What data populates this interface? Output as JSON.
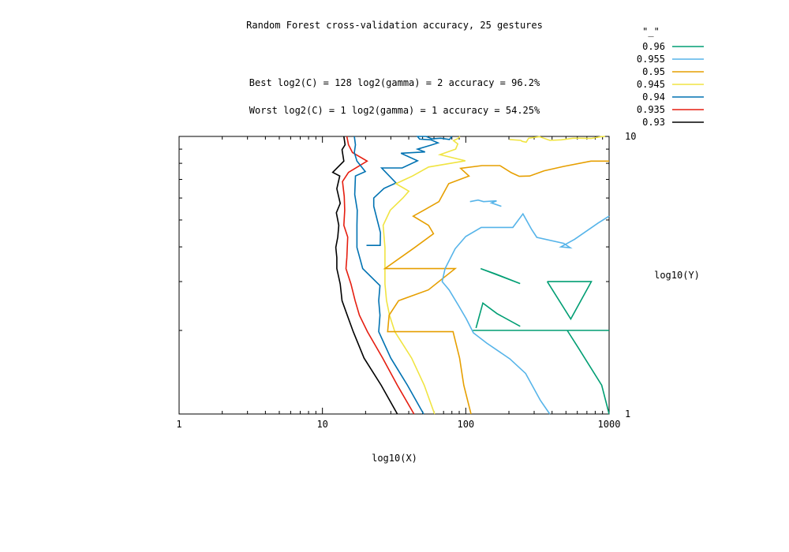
{
  "chart_data": {
    "type": "contour",
    "title": "Random Forest cross-validation accuracy, 25 gestures",
    "annotations": [
      "Best log2(C) = 128  log2(gamma) = 2  accuracy = 96.2%",
      "Worst log2(C) = 1  log2(gamma) = 1   accuracy = 54.25%"
    ],
    "xlabel": "log10(X)",
    "ylabel": "log10(Y)",
    "xscale": "log",
    "yscale": "log",
    "xlim": [
      1,
      1000
    ],
    "ylim": [
      1,
      10
    ],
    "x_ticks": [
      "1",
      "10",
      "100",
      "1000"
    ],
    "y_ticks": [
      "1",
      "10"
    ],
    "legend_title": "\"_\"",
    "legend_position": "top-right",
    "levels": [
      {
        "label": "0.96",
        "color": "#009e73"
      },
      {
        "label": "0.955",
        "color": "#56b4e9"
      },
      {
        "label": "0.95",
        "color": "#e69f00"
      },
      {
        "label": "0.945",
        "color": "#f0e442"
      },
      {
        "label": "0.94",
        "color": "#0072b2"
      },
      {
        "label": "0.935",
        "color": "#e51e10"
      },
      {
        "label": "0.93",
        "color": "#000000"
      }
    ],
    "series": [
      {
        "name": "0.93",
        "segments": [
          [
            [
              33.3,
              1
            ],
            [
              25.7,
              1.27
            ],
            [
              19.5,
              1.59
            ],
            [
              16.4,
              1.98
            ],
            [
              14.9,
              2.27
            ],
            [
              13.7,
              2.56
            ],
            [
              13.3,
              2.94
            ],
            [
              12.6,
              3.34
            ],
            [
              12.6,
              3.66
            ],
            [
              12.4,
              3.98
            ],
            [
              12.8,
              4.34
            ],
            [
              13.0,
              4.78
            ],
            [
              12.5,
              5.31
            ],
            [
              13.3,
              5.74
            ],
            [
              12.6,
              6.48
            ],
            [
              13.2,
              7.2
            ],
            [
              11.8,
              7.42
            ],
            [
              14.1,
              8.15
            ],
            [
              13.7,
              8.96
            ],
            [
              14.4,
              9.33
            ],
            [
              14.1,
              10
            ]
          ]
        ]
      },
      {
        "name": "0.935",
        "segments": [
          [
            [
              43.5,
              1
            ],
            [
              33.3,
              1.27
            ],
            [
              26.3,
              1.59
            ],
            [
              20.6,
              1.98
            ],
            [
              18.1,
              2.27
            ],
            [
              16.9,
              2.56
            ],
            [
              15.8,
              2.94
            ],
            [
              14.6,
              3.34
            ],
            [
              14.8,
              3.66
            ],
            [
              15.0,
              4.34
            ],
            [
              14.1,
              4.78
            ],
            [
              14.3,
              5.42
            ],
            [
              14.2,
              6.08
            ],
            [
              13.8,
              6.88
            ],
            [
              15.2,
              7.42
            ],
            [
              20.5,
              8.15
            ],
            [
              16.2,
              8.75
            ],
            [
              15.2,
              9.33
            ],
            [
              14.8,
              10
            ]
          ]
        ]
      },
      {
        "name": "0.94",
        "segments": [
          [
            [
              50.8,
              1
            ],
            [
              39.2,
              1.27
            ],
            [
              30.0,
              1.59
            ],
            [
              24.7,
              1.98
            ],
            [
              25.2,
              2.27
            ],
            [
              24.7,
              2.56
            ],
            [
              25.2,
              2.9
            ],
            [
              19.1,
              3.34
            ],
            [
              17.4,
              3.98
            ],
            [
              17.4,
              4.78
            ],
            [
              17.5,
              5.42
            ],
            [
              16.8,
              6.18
            ],
            [
              17.0,
              7.2
            ],
            [
              19.9,
              7.47
            ],
            [
              17.4,
              8.15
            ],
            [
              16.7,
              8.75
            ],
            [
              17.0,
              9.33
            ],
            [
              16.7,
              10
            ]
          ],
          [
            [
              20.3,
              4.05
            ],
            [
              25.3,
              4.05
            ],
            [
              25.4,
              4.5
            ],
            [
              22.8,
              5.6
            ],
            [
              22.8,
              6.0
            ],
            [
              26.9,
              6.5
            ],
            [
              32.6,
              6.8
            ],
            [
              25.9,
              7.7
            ],
            [
              36.0,
              7.7
            ],
            [
              46.1,
              8.17
            ],
            [
              35.3,
              8.7
            ],
            [
              52.0,
              8.79
            ],
            [
              46.1,
              9.0
            ],
            [
              57.0,
              9.3
            ],
            [
              64.0,
              9.48
            ],
            [
              57.0,
              9.72
            ],
            [
              47.6,
              9.78
            ],
            [
              46.1,
              10
            ],
            [
              53.0,
              10
            ],
            [
              58.0,
              9.8
            ],
            [
              67.0,
              9.85
            ],
            [
              77.0,
              9.75
            ],
            [
              80.0,
              10
            ]
          ]
        ]
      },
      {
        "name": "0.945",
        "segments": [
          [
            [
              60.6,
              1
            ],
            [
              51.3,
              1.27
            ],
            [
              41.9,
              1.59
            ],
            [
              32.0,
              1.98
            ],
            [
              29.4,
              2.27
            ],
            [
              28.0,
              2.56
            ],
            [
              27.3,
              2.94
            ],
            [
              27.3,
              3.34
            ],
            [
              27.3,
              3.98
            ],
            [
              26.5,
              4.78
            ],
            [
              29.7,
              5.42
            ],
            [
              36.4,
              6.0
            ],
            [
              40.1,
              6.35
            ],
            [
              32.6,
              6.76
            ],
            [
              42.5,
              7.2
            ],
            [
              55.0,
              7.76
            ],
            [
              99.3,
              8.17
            ],
            [
              66.0,
              8.6
            ],
            [
              85.0,
              9.0
            ],
            [
              88.0,
              9.4
            ],
            [
              82.0,
              9.66
            ],
            [
              88.0,
              9.82
            ],
            [
              91.0,
              10
            ]
          ],
          [
            [
              202,
              9.75
            ],
            [
              242,
              9.68
            ],
            [
              247,
              9.6
            ],
            [
              264,
              9.53
            ],
            [
              274,
              9.85
            ],
            [
              326,
              9.98
            ],
            [
              386,
              9.68
            ],
            [
              464,
              9.72
            ],
            [
              560,
              9.85
            ],
            [
              631,
              9.85
            ],
            [
              748,
              9.83
            ],
            [
              878,
              9.98
            ],
            [
              937,
              10
            ]
          ]
        ]
      },
      {
        "name": "0.95",
        "segments": [
          [
            [
              108.8,
              1
            ],
            [
              96.9,
              1.27
            ],
            [
              90.5,
              1.59
            ],
            [
              81.5,
              1.98
            ],
            [
              28.5,
              1.98
            ],
            [
              29.2,
              2.27
            ],
            [
              34.0,
              2.56
            ],
            [
              54.9,
              2.8
            ],
            [
              84.3,
              3.34
            ],
            [
              27.3,
              3.34
            ],
            [
              44.1,
              3.98
            ],
            [
              59.5,
              4.46
            ],
            [
              55.0,
              4.78
            ],
            [
              43.0,
              5.16
            ],
            [
              51.0,
              5.42
            ],
            [
              65.0,
              5.82
            ],
            [
              76.0,
              6.76
            ],
            [
              105.3,
              7.2
            ],
            [
              92.0,
              7.68
            ],
            [
              130,
              7.85
            ],
            [
              173,
              7.85
            ],
            [
              208,
              7.4
            ],
            [
              236,
              7.18
            ],
            [
              279,
              7.2
            ],
            [
              352,
              7.52
            ],
            [
              483,
              7.8
            ],
            [
              747,
              8.15
            ],
            [
              1000,
              8.15
            ]
          ]
        ]
      },
      {
        "name": "0.955",
        "segments": [
          [
            [
              385.6,
              1
            ],
            [
              331.5,
              1.12
            ],
            [
              261.7,
              1.4
            ],
            [
              203,
              1.58
            ],
            [
              140,
              1.8
            ],
            [
              113,
              1.96
            ],
            [
              101,
              2.2
            ],
            [
              89,
              2.46
            ],
            [
              76.5,
              2.8
            ],
            [
              68.4,
              3.0
            ],
            [
              71.7,
              3.34
            ],
            [
              84.3,
              3.94
            ],
            [
              100,
              4.36
            ],
            [
              128.1,
              4.7
            ],
            [
              213,
              4.7
            ],
            [
              250.6,
              5.26
            ],
            [
              288,
              4.62
            ],
            [
              313,
              4.33
            ],
            [
              482.3,
              4.12
            ],
            [
              535,
              3.97
            ],
            [
              461,
              4.0
            ],
            [
              575,
              4.26
            ],
            [
              841,
              4.88
            ],
            [
              1000,
              5.16
            ]
          ],
          [
            [
              107,
              5.82
            ],
            [
              122,
              5.9
            ],
            [
              133,
              5.82
            ],
            [
              164,
              5.86
            ],
            [
              151,
              5.76
            ],
            [
              177,
              5.6
            ]
          ]
        ]
      },
      {
        "name": "0.96",
        "segments": [
          [
            [
              127.0,
              3.34
            ],
            [
              160.6,
              3.2
            ],
            [
              239.5,
              2.95
            ],
            [
              127.0,
              3.34
            ]
          ],
          [
            [
              1000,
              1
            ],
            [
              888,
              1.27
            ],
            [
              606,
              1.74
            ],
            [
              510,
              2.0
            ],
            [
              112,
              2.0
            ],
            [
              1000,
              2.0
            ]
          ],
          [
            [
              117.8,
              2.04
            ],
            [
              131.6,
              2.51
            ],
            [
              165.1,
              2.3
            ],
            [
              239.8,
              2.07
            ]
          ],
          [
            [
              370,
              3.0
            ],
            [
              752,
              3.0
            ],
            [
              540,
              2.2
            ],
            [
              370,
              3.0
            ]
          ]
        ]
      }
    ]
  }
}
